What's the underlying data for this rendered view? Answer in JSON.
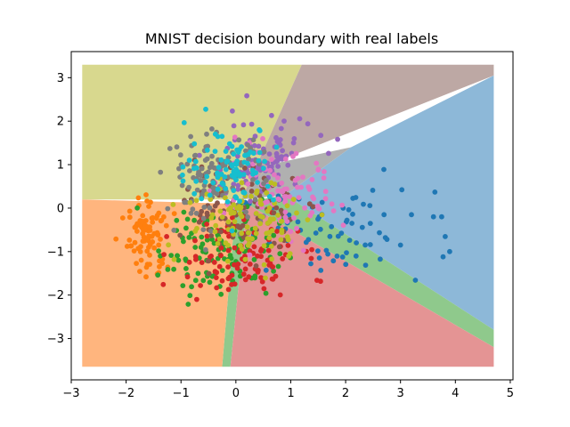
{
  "chart_data": {
    "type": "scatter",
    "title": "MNIST decision boundary with real labels",
    "xlabel": "",
    "ylabel": "",
    "xlim": [
      -3.0,
      5.05
    ],
    "ylim": [
      -3.95,
      3.6
    ],
    "xticks": [
      -3,
      -2,
      -1,
      0,
      1,
      2,
      3,
      4,
      5
    ],
    "yticks": [
      -3,
      -2,
      -1,
      0,
      1,
      2,
      3
    ],
    "grid": false,
    "legend": "none",
    "decision_regions": [
      {
        "color": "#d8d88e",
        "polygon": [
          [
            -2.8,
            0.2
          ],
          [
            -2.8,
            3.3
          ],
          [
            1.2,
            3.3
          ],
          [
            0.1,
            0.2
          ]
        ]
      },
      {
        "color": "#bda8a4",
        "polygon": [
          [
            1.2,
            3.3
          ],
          [
            4.7,
            3.3
          ],
          [
            4.7,
            3.05
          ],
          [
            0.6,
            1.0
          ],
          [
            0.1,
            0.2
          ]
        ]
      },
      {
        "color": "#b0b0b0",
        "polygon": [
          [
            0.1,
            0.2
          ],
          [
            0.6,
            1.0
          ],
          [
            2.1,
            1.4
          ],
          [
            0.9,
            0.3
          ]
        ]
      },
      {
        "color": "#8db8d8",
        "polygon": [
          [
            2.1,
            1.4
          ],
          [
            4.7,
            3.05
          ],
          [
            4.7,
            -2.8
          ],
          [
            0.9,
            0.3
          ]
        ]
      },
      {
        "color": "#8fc98c",
        "polygon": [
          [
            0.9,
            0.3
          ],
          [
            4.7,
            -2.8
          ],
          [
            4.7,
            -3.2
          ],
          [
            0.2,
            0.1
          ],
          [
            -0.1,
            -3.65
          ],
          [
            -0.25,
            -3.65
          ],
          [
            0.0,
            0.1
          ]
        ]
      },
      {
        "color": "#ffb57e",
        "polygon": [
          [
            -2.8,
            0.2
          ],
          [
            0.0,
            0.1
          ],
          [
            -0.25,
            -3.65
          ],
          [
            -2.8,
            -3.65
          ]
        ]
      },
      {
        "color": "#e49494",
        "polygon": [
          [
            0.2,
            0.1
          ],
          [
            4.7,
            -3.2
          ],
          [
            4.7,
            -3.65
          ],
          [
            -0.1,
            -3.65
          ]
        ]
      }
    ],
    "series": [
      {
        "color": "#1f77b4",
        "cx": 1.8,
        "cy": -0.6,
        "sx": 0.9,
        "sy": 0.5,
        "n": 70,
        "extra": [
          [
            3.2,
            -0.15
          ],
          [
            3.6,
            -0.2
          ],
          [
            3.75,
            -0.2
          ],
          [
            2.7,
            -0.15
          ],
          [
            3.0,
            -0.85
          ],
          [
            2.45,
            -0.35
          ]
        ]
      },
      {
        "color": "#ff7f0e",
        "cx": -1.6,
        "cy": -0.65,
        "sx": 0.18,
        "sy": 0.45,
        "n": 90,
        "extra": []
      },
      {
        "color": "#2ca02c",
        "cx": -0.3,
        "cy": -0.9,
        "sx": 0.55,
        "sy": 0.55,
        "n": 120,
        "extra": []
      },
      {
        "color": "#d62728",
        "cx": 0.05,
        "cy": -1.1,
        "sx": 0.55,
        "sy": 0.5,
        "n": 110,
        "extra": []
      },
      {
        "color": "#9467bd",
        "cx": 0.4,
        "cy": 1.1,
        "sx": 0.5,
        "sy": 0.5,
        "n": 100,
        "extra": []
      },
      {
        "color": "#8c564b",
        "cx": 0.1,
        "cy": 0.0,
        "sx": 0.5,
        "sy": 0.5,
        "n": 90,
        "extra": []
      },
      {
        "color": "#e377c2",
        "cx": 0.8,
        "cy": 0.2,
        "sx": 0.55,
        "sy": 0.5,
        "n": 90,
        "extra": []
      },
      {
        "color": "#7f7f7f",
        "cx": -0.4,
        "cy": 0.7,
        "sx": 0.45,
        "sy": 0.5,
        "n": 110,
        "extra": []
      },
      {
        "color": "#bcbd22",
        "cx": 0.3,
        "cy": -0.3,
        "sx": 0.6,
        "sy": 0.5,
        "n": 100,
        "extra": []
      },
      {
        "color": "#17becf",
        "cx": -0.1,
        "cy": 1.0,
        "sx": 0.4,
        "sy": 0.45,
        "n": 90,
        "extra": []
      }
    ]
  }
}
